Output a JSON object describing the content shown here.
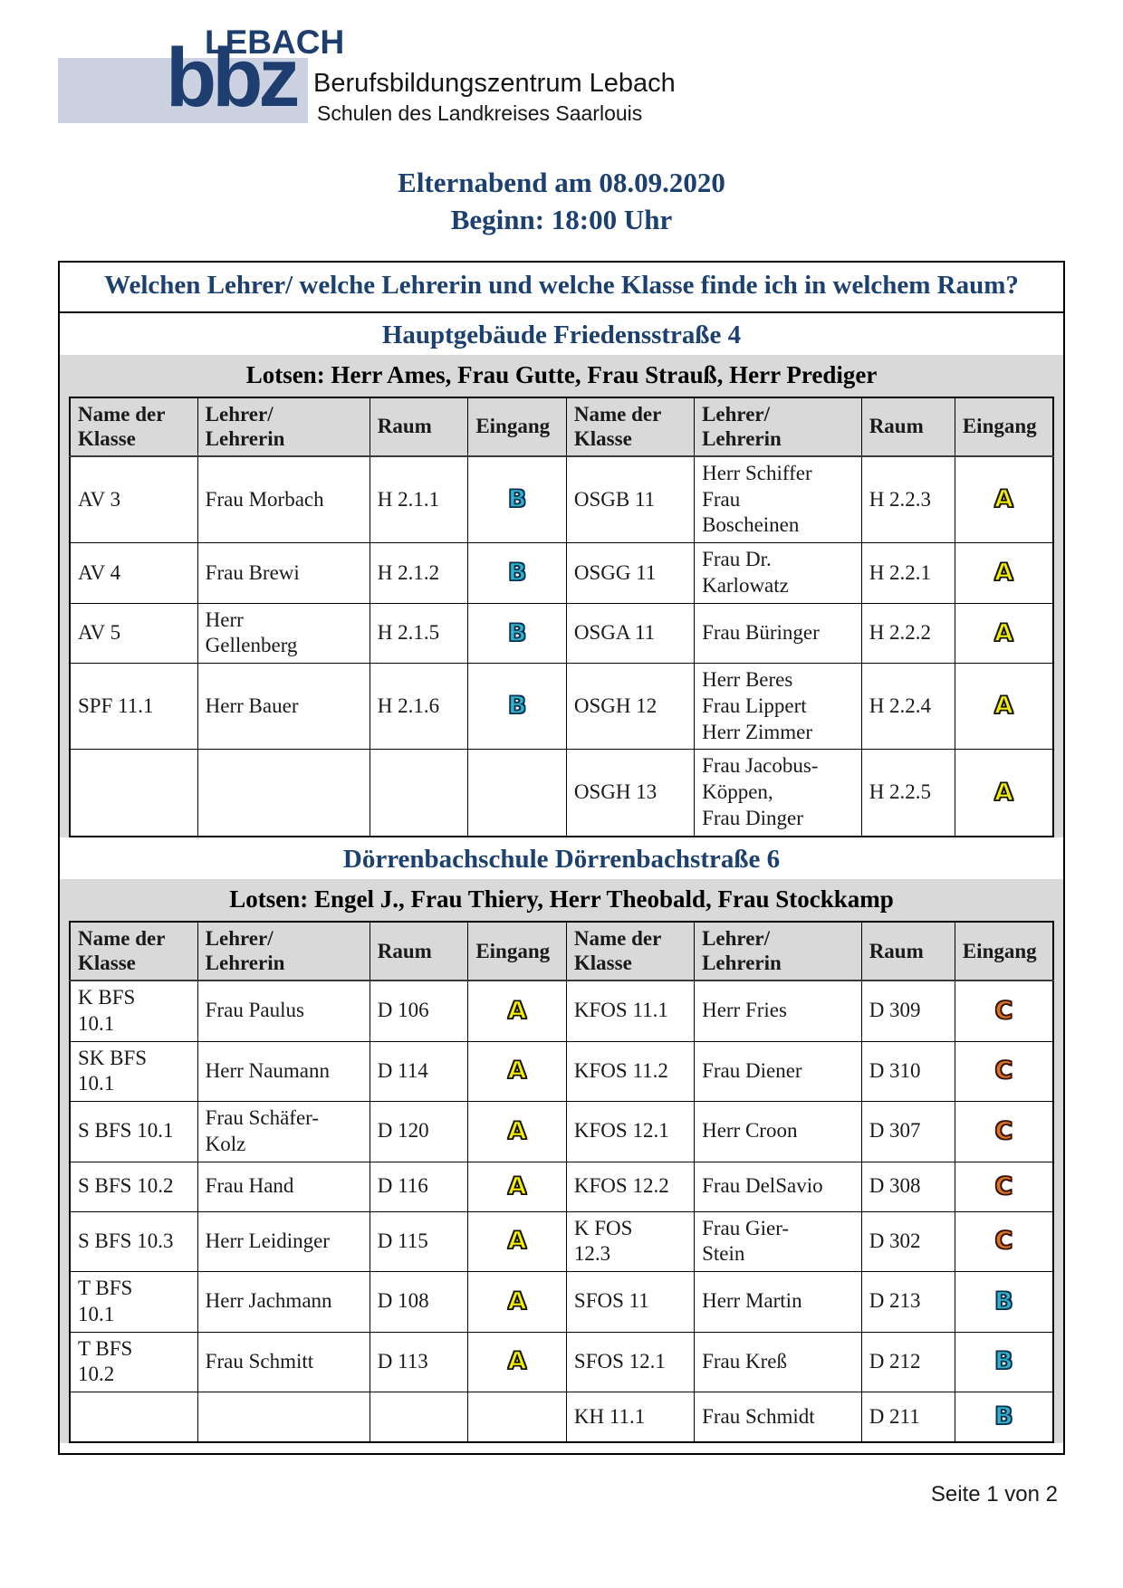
{
  "logo": {
    "town": "LEBACH",
    "acronym": "bbz",
    "name": "Berufsbildungszentrum Lebach",
    "subtitle": "Schulen des Landkreises Saarlouis"
  },
  "title": {
    "line1": "Elternabend am 08.09.2020",
    "line2": "Beginn: 18:00 Uhr"
  },
  "question": "Welchen Lehrer/ welche Lehrerin und welche Klasse finde ich in welchem Raum?",
  "sections": [
    {
      "building": "Hauptgebäude Friedensstraße 4",
      "lotsen": "Lotsen: Herr Ames, Frau Gutte, Frau Strauß, Herr Prediger",
      "columns": [
        "Name der\nKlasse",
        "Lehrer/\nLehrerin",
        "Raum",
        "Eingang",
        "Name der\nKlasse",
        "Lehrer/\nLehrerin",
        "Raum",
        "Eingang"
      ],
      "rows": [
        [
          "AV 3",
          "Frau Morbach",
          "H 2.1.1",
          "B",
          "OSGB 11",
          "Herr Schiffer\nFrau\nBoscheinen",
          "H 2.2.3",
          "A"
        ],
        [
          "AV 4",
          "Frau Brewi",
          "H 2.1.2",
          "B",
          "OSGG 11",
          "Frau Dr.\nKarlowatz",
          "H 2.2.1",
          "A"
        ],
        [
          "AV 5",
          "Herr\nGellenberg",
          "H 2.1.5",
          "B",
          "OSGA 11",
          "Frau Büringer",
          "H 2.2.2",
          "A"
        ],
        [
          "SPF 11.1",
          "Herr Bauer",
          "H 2.1.6",
          "B",
          "OSGH 12",
          "Herr Beres\nFrau Lippert\nHerr Zimmer",
          "H 2.2.4",
          "A"
        ],
        [
          "",
          "",
          "",
          "",
          "OSGH 13",
          "Frau Jacobus-\nKöppen,\nFrau Dinger",
          "H 2.2.5",
          "A"
        ]
      ]
    },
    {
      "building": "Dörrenbachschule Dörrenbachstraße 6",
      "lotsen": "Lotsen: Engel J., Frau Thiery, Herr Theobald, Frau Stockkamp",
      "columns": [
        "Name der\nKlasse",
        "Lehrer/\nLehrerin",
        "Raum",
        "Eingang",
        "Name der\nKlasse",
        "Lehrer/\nLehrerin",
        "Raum",
        "Eingang"
      ],
      "rows": [
        [
          "K BFS\n10.1",
          "Frau Paulus",
          "D 106",
          "A",
          "KFOS 11.1",
          "Herr Fries",
          "D 309",
          "C"
        ],
        [
          "SK BFS\n10.1",
          "Herr Naumann",
          "D 114",
          "A",
          "KFOS 11.2",
          "Frau Diener",
          "D 310",
          "C"
        ],
        [
          "S BFS 10.1",
          "Frau Schäfer-\nKolz",
          "D 120",
          "A",
          "KFOS 12.1",
          "Herr Croon",
          "D 307",
          "C"
        ],
        [
          "S BFS 10.2",
          "Frau Hand",
          "D 116",
          "A",
          "KFOS 12.2",
          "Frau DelSavio",
          "D 308",
          "C"
        ],
        [
          "S BFS 10.3",
          "Herr Leidinger",
          "D 115",
          "A",
          "K FOS\n12.3",
          "Frau Gier-\nStein",
          "D 302",
          "C"
        ],
        [
          "T BFS\n10.1",
          "Herr Jachmann",
          "D 108",
          "A",
          "SFOS 11",
          "Herr Martin",
          "D 213",
          "B"
        ],
        [
          "T BFS\n10.2",
          "Frau Schmitt",
          "D 113",
          "A",
          "SFOS 12.1",
          "Frau Kreß",
          "D 212",
          "B"
        ],
        [
          "",
          "",
          "",
          "",
          "KH 11.1",
          "Frau Schmidt",
          "D 211",
          "B"
        ]
      ]
    }
  ],
  "footer": {
    "page_label": "Seite 1 von 2"
  },
  "colors": {
    "brand_blue": "#1e3e6f",
    "heading_blue": "#1c406f",
    "table_gray": "#d9d9d9",
    "entrance_A_fill": "#f6ef00",
    "entrance_A_stroke": "#151500",
    "entrance_B_fill": "#2cb4c9",
    "entrance_B_stroke": "#0b2d52",
    "entrance_C_fill": "#e0731d",
    "entrance_C_stroke": "#351107"
  }
}
